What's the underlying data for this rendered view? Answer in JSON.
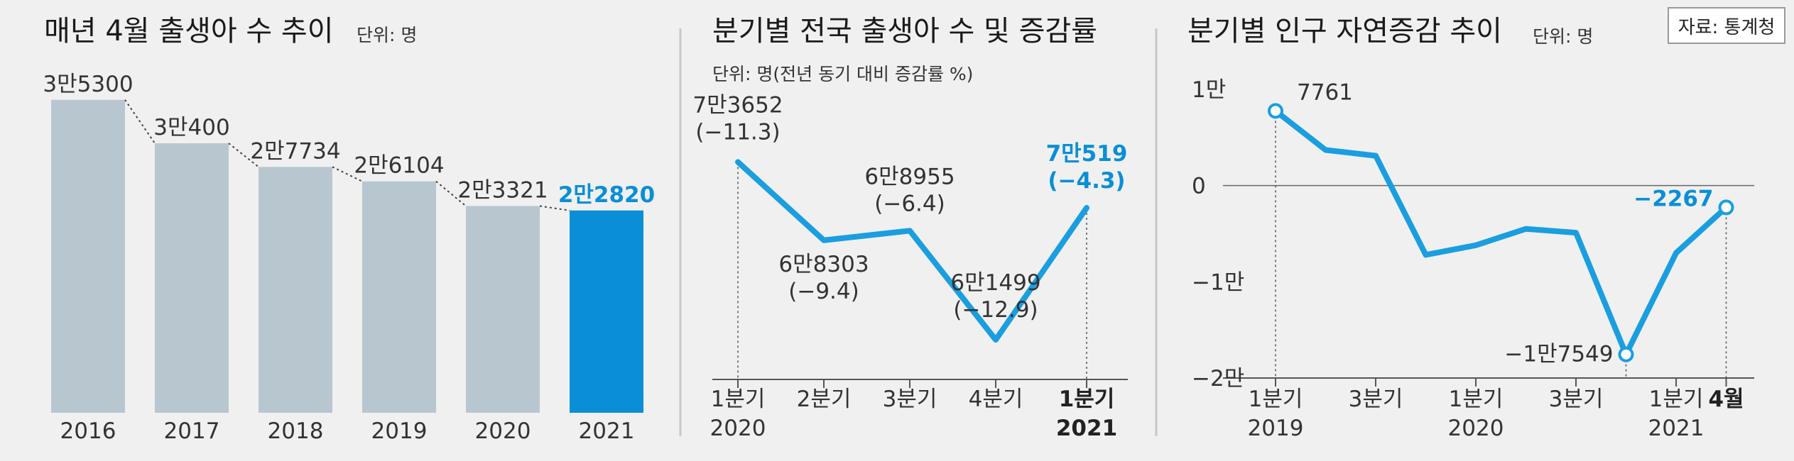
{
  "source_badge": "자료: 통계청",
  "colors": {
    "bar": "#b8c7cf",
    "highlight": "#0a8fd6",
    "line": "#1a9ee0",
    "axis": "#555555",
    "background": "#f0f0f0"
  },
  "chart_data": [
    {
      "type": "bar",
      "title": "매년 4월 출생아 수 추이",
      "unit": "단위: 명",
      "categories": [
        "2016",
        "2017",
        "2018",
        "2019",
        "2020",
        "2021"
      ],
      "values": [
        35300,
        30400,
        27734,
        26104,
        23321,
        22820
      ],
      "labels": [
        "3만5300",
        "3만400",
        "2만7734",
        "2만6104",
        "2만3321",
        "2만2820"
      ],
      "highlight_index": 5,
      "ylim": [
        0,
        36000
      ]
    },
    {
      "type": "line",
      "title": "분기별 전국 출생아 수 및 증감률",
      "unit": "단위: 명(전년 동기 대비 증감률 %)",
      "x_ticks": [
        {
          "line1": "1분기",
          "line2": "2020"
        },
        {
          "line1": "2분기",
          "line2": ""
        },
        {
          "line1": "3분기",
          "line2": ""
        },
        {
          "line1": "4분기",
          "line2": ""
        },
        {
          "line1": "1분기",
          "line2": "2021"
        }
      ],
      "values": [
        73652,
        68303,
        68955,
        61499,
        70519
      ],
      "value_labels": [
        "7만3652",
        "6만8303",
        "6만8955",
        "6만1499",
        "7만519"
      ],
      "rate_labels": [
        "(−11.3)",
        "(−9.4)",
        "(−6.4)",
        "(−12.9)",
        "(−4.3)"
      ],
      "highlight_index": 4,
      "ylim": [
        60000,
        76000
      ]
    },
    {
      "type": "line",
      "title": "분기별 인구 자연증감 추이",
      "unit": "단위: 명",
      "y_ticks": [
        {
          "value": 10000,
          "label": "1만"
        },
        {
          "value": 0,
          "label": "0"
        },
        {
          "value": -10000,
          "label": "−1만"
        },
        {
          "value": -20000,
          "label": "−2만"
        }
      ],
      "x_ticks": [
        {
          "index": 0,
          "line1": "1분기",
          "line2": "2019"
        },
        {
          "index": 2,
          "line1": "3분기",
          "line2": ""
        },
        {
          "index": 4,
          "line1": "1분기",
          "line2": "2020"
        },
        {
          "index": 6,
          "line1": "3분기",
          "line2": ""
        },
        {
          "index": 8,
          "line1": "1분기",
          "line2": "2021"
        },
        {
          "index": 9,
          "line1": "4월",
          "line2": ""
        }
      ],
      "values": [
        7761,
        3700,
        3100,
        -7200,
        -6200,
        -4500,
        -4900,
        -17549,
        -7000,
        -2267
      ],
      "point_labels": [
        {
          "index": 0,
          "text": "7761"
        },
        {
          "index": 7,
          "text": "−1만7549"
        },
        {
          "index": 9,
          "text": "−2267"
        }
      ],
      "highlight_index": 9,
      "ylim": [
        -20000,
        10000
      ]
    }
  ]
}
